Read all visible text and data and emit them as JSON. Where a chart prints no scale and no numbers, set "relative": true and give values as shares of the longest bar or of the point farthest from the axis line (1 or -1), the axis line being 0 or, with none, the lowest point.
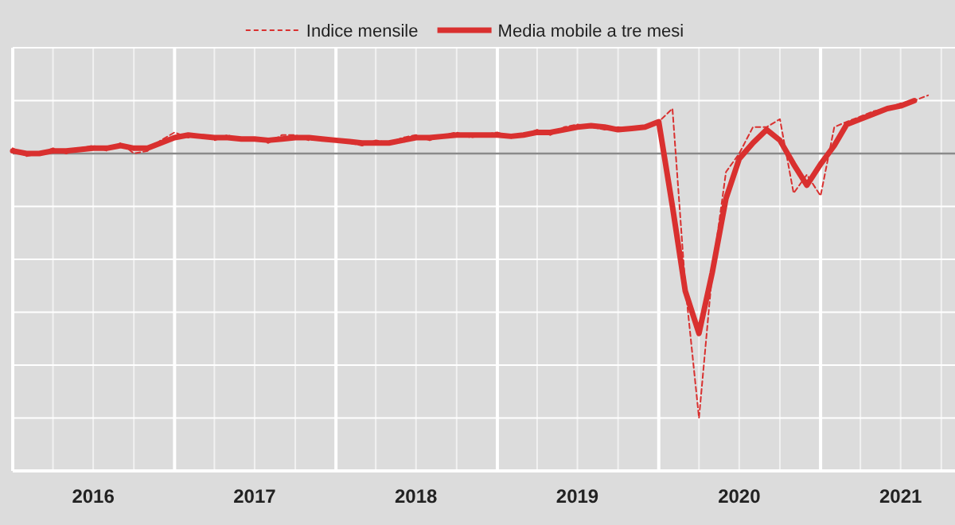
{
  "chart_data": {
    "type": "line",
    "relative": true,
    "grid": true,
    "legend": "top",
    "tick_labels": "x",
    "x": [
      "2016-01",
      "2016-02",
      "2016-03",
      "2016-04",
      "2016-05",
      "2016-06",
      "2016-07",
      "2016-08",
      "2016-09",
      "2016-10",
      "2016-11",
      "2016-12",
      "2017-01",
      "2017-02",
      "2017-03",
      "2017-04",
      "2017-05",
      "2017-06",
      "2017-07",
      "2017-08",
      "2017-09",
      "2017-10",
      "2017-11",
      "2017-12",
      "2018-01",
      "2018-02",
      "2018-03",
      "2018-04",
      "2018-05",
      "2018-06",
      "2018-07",
      "2018-08",
      "2018-09",
      "2018-10",
      "2018-11",
      "2018-12",
      "2019-01",
      "2019-02",
      "2019-03",
      "2019-04",
      "2019-05",
      "2019-06",
      "2019-07",
      "2019-08",
      "2019-09",
      "2019-10",
      "2019-11",
      "2019-12",
      "2020-01",
      "2020-02",
      "2020-03",
      "2020-04",
      "2020-05",
      "2020-06",
      "2020-07",
      "2020-08",
      "2020-09",
      "2020-10",
      "2020-11",
      "2020-12",
      "2021-01",
      "2021-02",
      "2021-03",
      "2021-04",
      "2021-05",
      "2021-06",
      "2021-07",
      "2021-08",
      "2021-09"
    ],
    "xlim": [
      "2016-01",
      "2021-11"
    ],
    "xticks": [
      {
        "value": "2016-01",
        "label": null
      },
      {
        "value": "2016-04",
        "label": null
      },
      {
        "value": "2016-07",
        "label": "2016"
      },
      {
        "value": "2016-10",
        "label": null
      },
      {
        "value": "2017-01",
        "label": null
      },
      {
        "value": "2017-04",
        "label": null
      },
      {
        "value": "2017-07",
        "label": "2017"
      },
      {
        "value": "2017-10",
        "label": null
      },
      {
        "value": "2018-01",
        "label": null
      },
      {
        "value": "2018-04",
        "label": null
      },
      {
        "value": "2018-07",
        "label": "2018"
      },
      {
        "value": "2018-10",
        "label": null
      },
      {
        "value": "2019-01",
        "label": null
      },
      {
        "value": "2019-04",
        "label": null
      },
      {
        "value": "2019-07",
        "label": "2019"
      },
      {
        "value": "2019-10",
        "label": null
      },
      {
        "value": "2020-01",
        "label": null
      },
      {
        "value": "2020-04",
        "label": null
      },
      {
        "value": "2020-07",
        "label": "2020"
      },
      {
        "value": "2020-10",
        "label": null
      },
      {
        "value": "2021-01",
        "label": null
      },
      {
        "value": "2021-04",
        "label": null
      },
      {
        "value": "2021-07",
        "label": "2021"
      },
      {
        "value": "2021-10",
        "label": null
      }
    ],
    "series": [
      {
        "name": "Indice mensile",
        "color": "#d9302f",
        "line_style": "dashed",
        "values": [
          0.02,
          -0.01,
          0.0,
          0.02,
          0.0,
          0.02,
          0.03,
          0.01,
          0.04,
          0.0,
          0.01,
          0.05,
          0.08,
          0.06,
          0.07,
          0.05,
          0.07,
          0.05,
          0.06,
          0.04,
          0.07,
          0.07,
          0.05,
          0.06,
          0.05,
          0.04,
          0.03,
          0.05,
          0.04,
          0.06,
          0.07,
          0.05,
          0.07,
          0.08,
          0.06,
          0.07,
          0.08,
          0.06,
          0.07,
          0.09,
          0.07,
          0.1,
          0.11,
          0.1,
          0.09,
          0.1,
          0.09,
          0.1,
          0.12,
          0.17,
          -0.5,
          -1.0,
          -0.45,
          -0.07,
          0.0,
          0.1,
          0.1,
          0.13,
          -0.15,
          -0.08,
          -0.16,
          0.1,
          0.12,
          0.14,
          0.16,
          0.17,
          0.19,
          0.2,
          0.22
        ]
      },
      {
        "name": "Media mobile a tre mesi",
        "color": "#d9302f",
        "line_style": "solid",
        "values": [
          0.01,
          0.0,
          0.0,
          0.01,
          0.01,
          0.015,
          0.02,
          0.02,
          0.03,
          0.02,
          0.02,
          0.04,
          0.06,
          0.07,
          0.065,
          0.06,
          0.06,
          0.055,
          0.055,
          0.05,
          0.055,
          0.06,
          0.06,
          0.055,
          0.05,
          0.045,
          0.04,
          0.04,
          0.04,
          0.05,
          0.06,
          0.06,
          0.065,
          0.07,
          0.07,
          0.07,
          0.07,
          0.065,
          0.07,
          0.08,
          0.08,
          0.09,
          0.1,
          0.105,
          0.1,
          0.09,
          0.095,
          0.1,
          0.12,
          -0.2,
          -0.52,
          -0.68,
          -0.45,
          -0.17,
          -0.02,
          0.04,
          0.09,
          0.05,
          -0.04,
          -0.12,
          -0.04,
          0.03,
          0.11,
          0.13,
          0.15,
          0.17,
          0.18,
          0.2,
          null
        ]
      }
    ]
  }
}
